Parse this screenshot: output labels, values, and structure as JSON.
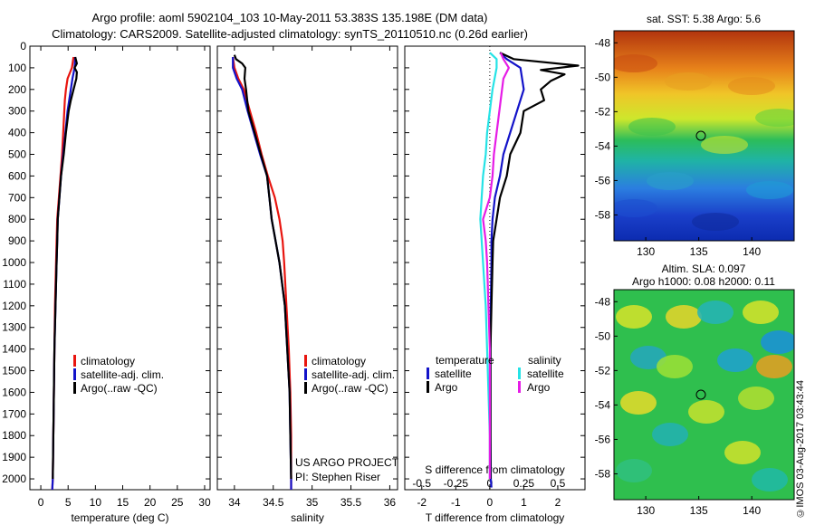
{
  "header": {
    "line1": "Argo profile: aoml 5902104_103 10-May-2011 53.383S 135.198E (DM data)",
    "line2": "Climatology: CARS2009. Satellite-adjusted climatology: synTS_20110510.nc (0.26d earlier)"
  },
  "credit": "©IMOS 03-Aug-2017 03:43:44",
  "colors": {
    "climatology": "#e8150f",
    "satellite": "#1313c9",
    "argo": "#000000",
    "sal_satellite": "#25e3e6",
    "sal_argo": "#e61ce6"
  },
  "chart_data": [
    {
      "type": "line",
      "xlabel": "temperature (deg C)",
      "xlim": [
        -2,
        31
      ],
      "xticks": [
        0,
        5,
        10,
        15,
        20,
        25,
        30
      ],
      "ylim": [
        2050,
        0
      ],
      "yticks": [
        0,
        100,
        200,
        300,
        400,
        500,
        600,
        700,
        800,
        900,
        1000,
        1100,
        1200,
        1300,
        1400,
        1500,
        1600,
        1700,
        1800,
        1900,
        2000
      ],
      "legend": [
        "climatology",
        "satellite-adj. clim.",
        "Argo(..raw -QC)"
      ],
      "series": [
        {
          "name": "climatology",
          "depth": [
            50,
            100,
            150,
            200,
            250,
            300,
            400,
            500,
            600,
            700,
            800,
            900,
            1000,
            1200,
            1400,
            1600,
            1800,
            2000,
            2050
          ],
          "values": [
            6.0,
            5.7,
            4.9,
            4.6,
            4.4,
            4.3,
            4.1,
            3.9,
            3.6,
            3.3,
            3.0,
            2.9,
            2.8,
            2.6,
            2.5,
            2.4,
            2.3,
            2.2,
            2.1
          ]
        },
        {
          "name": "satellite-adj. clim.",
          "depth": [
            50,
            100,
            150,
            200,
            250,
            300,
            400,
            500,
            600,
            700,
            800,
            900,
            1000,
            1200,
            1400,
            1600,
            1800,
            2000,
            2050
          ],
          "values": [
            6.3,
            6.2,
            5.8,
            5.5,
            5.2,
            4.9,
            4.5,
            4.1,
            3.7,
            3.4,
            3.1,
            3.0,
            2.9,
            2.7,
            2.5,
            2.4,
            2.3,
            2.2,
            2.1
          ]
        },
        {
          "name": "Argo(..raw -QC)",
          "depth": [
            50,
            80,
            100,
            120,
            150,
            200,
            250,
            300,
            400,
            500,
            600,
            700,
            800,
            900,
            1000,
            1200,
            1400,
            1600,
            1800,
            2000
          ],
          "values": [
            6.3,
            6.6,
            6.2,
            6.6,
            6.5,
            6.0,
            5.5,
            5.1,
            4.6,
            4.2,
            3.7,
            3.4,
            3.1,
            3.0,
            2.9,
            2.7,
            2.5,
            2.4,
            2.3,
            2.2
          ]
        }
      ]
    },
    {
      "type": "line",
      "xlabel": "salinity",
      "xlim": [
        33.78,
        36.1
      ],
      "xticks": [
        34,
        34.5,
        35,
        35.5,
        36
      ],
      "ylim": [
        2050,
        0
      ],
      "legend": [
        "climatology",
        "satellite-adj. clim.",
        "Argo(..raw -QC)"
      ],
      "annotation": [
        "US ARGO PROJECT",
        "PI: Stephen Riser"
      ],
      "series": [
        {
          "name": "climatology",
          "depth": [
            50,
            100,
            150,
            200,
            300,
            400,
            500,
            600,
            700,
            800,
            900,
            1000,
            1200,
            1400,
            1600,
            1800,
            2000,
            2050
          ],
          "values": [
            33.98,
            34.0,
            34.05,
            34.12,
            34.2,
            34.28,
            34.35,
            34.43,
            34.52,
            34.58,
            34.62,
            34.64,
            34.67,
            34.7,
            34.72,
            34.73,
            34.73,
            34.73
          ]
        },
        {
          "name": "satellite-adj. clim.",
          "depth": [
            50,
            100,
            150,
            200,
            300,
            400,
            500,
            600,
            700,
            800,
            900,
            1000,
            1200,
            1400,
            1600,
            1800,
            2000,
            2050
          ],
          "values": [
            33.98,
            33.98,
            34.03,
            34.1,
            34.17,
            34.25,
            34.33,
            34.42,
            34.45,
            34.48,
            34.53,
            34.58,
            34.65,
            34.68,
            34.71,
            34.72,
            34.73,
            34.73
          ]
        },
        {
          "name": "Argo(..raw -QC)",
          "depth": [
            40,
            60,
            80,
            100,
            150,
            200,
            300,
            400,
            500,
            600,
            700,
            800,
            900,
            1000,
            1200,
            1400,
            1600,
            1800,
            2000
          ],
          "values": [
            34.0,
            34.02,
            34.1,
            34.14,
            34.13,
            34.15,
            34.18,
            34.26,
            34.34,
            34.42,
            34.45,
            34.48,
            34.53,
            34.58,
            34.65,
            34.68,
            34.71,
            34.72,
            34.73
          ]
        }
      ]
    },
    {
      "type": "line",
      "xlabel": "T difference from climatology",
      "xlabel2": "S difference from climatology",
      "xlim": [
        -2.5,
        2.8
      ],
      "xticks": [
        -2,
        -1,
        0,
        1,
        2
      ],
      "sticks": [
        "-0.5",
        "-0.25",
        "0",
        "0.25",
        "0.5"
      ],
      "ylim": [
        2050,
        0
      ],
      "legend_left_title": "temperature",
      "legend_right_title": "salinity",
      "legend_left": [
        "satellite",
        "Argo"
      ],
      "legend_right": [
        "satellite",
        "Argo"
      ],
      "series": [
        {
          "name": "T satellite",
          "depth": [
            30,
            60,
            100,
            200,
            300,
            400,
            500,
            600,
            700,
            800,
            900,
            1000,
            1200,
            1400,
            1600,
            1800,
            2000,
            2040
          ],
          "values": [
            0.3,
            0.5,
            0.9,
            1.0,
            0.8,
            0.6,
            0.4,
            0.3,
            0.15,
            0.08,
            0.05,
            0.05,
            0.03,
            0.02,
            0.02,
            0.02,
            0.03,
            0.05
          ]
        },
        {
          "name": "T Argo",
          "depth": [
            30,
            60,
            90,
            110,
            130,
            160,
            200,
            250,
            300,
            400,
            500,
            600,
            700,
            800,
            900,
            1000,
            1200,
            1400,
            1600,
            1800,
            2000
          ],
          "values": [
            0.3,
            0.7,
            2.6,
            1.5,
            2.2,
            1.8,
            1.5,
            1.6,
            1.0,
            0.9,
            0.6,
            0.5,
            0.3,
            0.2,
            0.1,
            0.08,
            0.05,
            0.02,
            0.02,
            0.02,
            0.02
          ]
        },
        {
          "name": "S satellite",
          "depth": [
            30,
            60,
            100,
            200,
            300,
            400,
            500,
            600,
            700,
            800,
            900,
            1000,
            1200,
            1400,
            1600,
            1800,
            2000
          ],
          "values": [
            0.0,
            0.05,
            0.05,
            0.02,
            0.0,
            -0.02,
            -0.03,
            -0.05,
            -0.06,
            -0.07,
            -0.06,
            -0.05,
            -0.03,
            -0.02,
            -0.01,
            0.0,
            0.0
          ]
        },
        {
          "name": "S Argo",
          "depth": [
            30,
            60,
            100,
            150,
            200,
            300,
            400,
            500,
            600,
            700,
            800,
            900,
            1000,
            1200,
            1400,
            1600,
            1800,
            2000
          ],
          "values": [
            0.08,
            0.1,
            0.14,
            0.1,
            0.09,
            0.07,
            0.05,
            0.03,
            0.02,
            0.0,
            -0.05,
            -0.03,
            -0.02,
            -0.01,
            0.0,
            0.0,
            0.0,
            0.0
          ]
        }
      ]
    },
    {
      "type": "heatmap",
      "title": "sat. SST: 5.38 Argo: 5.6",
      "xticks": [
        130,
        135,
        140
      ],
      "yticks": [
        -48,
        -50,
        -52,
        -54,
        -56,
        -58
      ],
      "xlim": [
        127,
        144
      ],
      "ylim": [
        -59.5,
        -47.3
      ],
      "marker": [
        135.2,
        -53.4
      ]
    },
    {
      "type": "heatmap",
      "title": "Altim. SLA: 0.097",
      "subtitle": "Argo h1000: 0.08 h2000: 0.11",
      "xticks": [
        130,
        135,
        140
      ],
      "yticks": [
        -48,
        -50,
        -52,
        -54,
        -56,
        -58
      ],
      "xlim": [
        127,
        144
      ],
      "ylim": [
        -59.5,
        -47.3
      ],
      "marker": [
        135.2,
        -53.4
      ]
    }
  ]
}
